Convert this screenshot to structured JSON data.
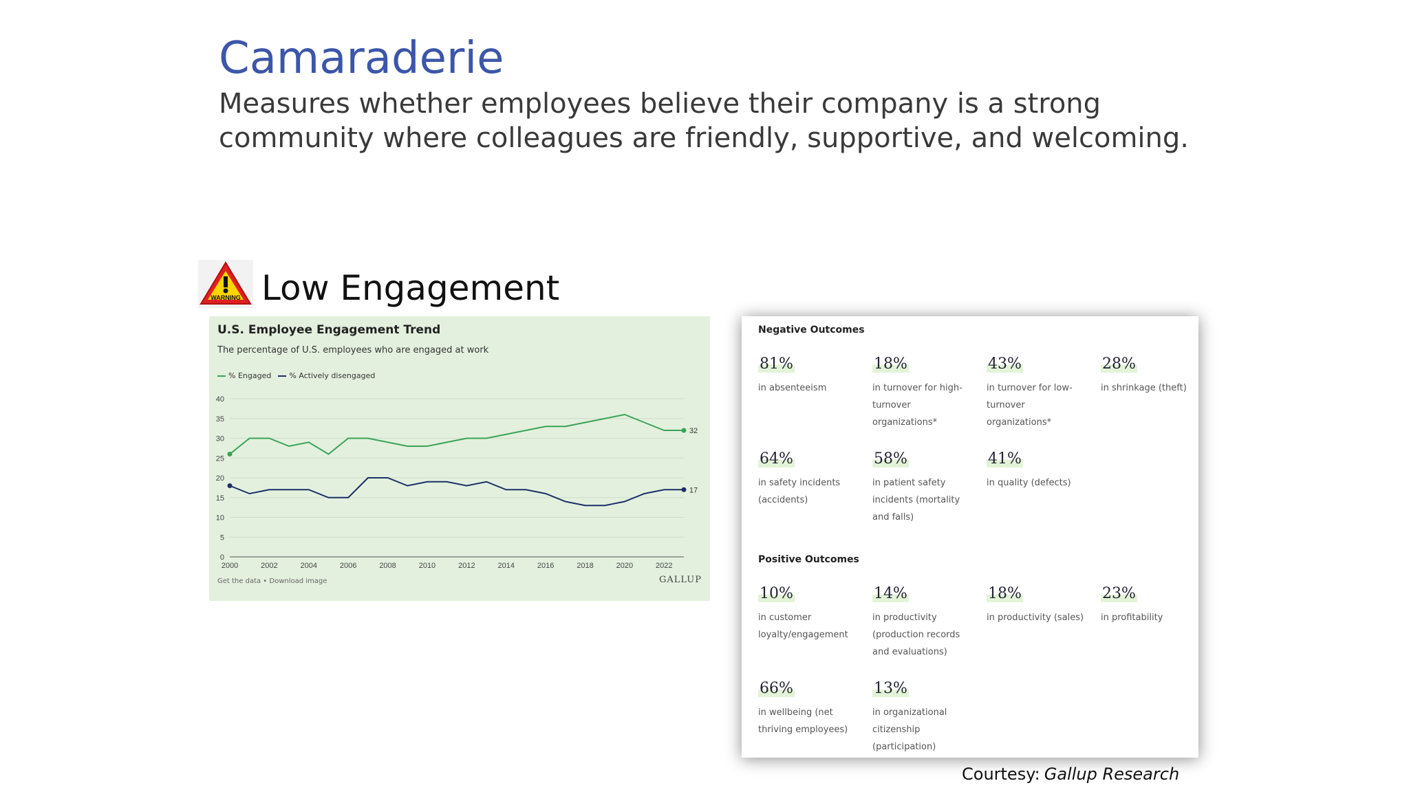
{
  "slide": {
    "title": "Camaraderie",
    "subtitle": "Measures whether employees believe their company is a strong community where colleagues are friendly, supportive, and welcoming.",
    "warning_label": "WARNING",
    "low_engagement": "Low Engagement",
    "courtesy_label": "Courtesy:",
    "courtesy_source": "Gallup Research"
  },
  "chart_data": {
    "type": "line",
    "title": "U.S. Employee Engagement Trend",
    "subtitle": "The percentage of U.S. employees who are engaged at work",
    "x": [
      2000,
      2001,
      2002,
      2003,
      2004,
      2005,
      2006,
      2007,
      2008,
      2009,
      2010,
      2011,
      2012,
      2013,
      2014,
      2015,
      2016,
      2017,
      2018,
      2019,
      2020,
      2021,
      2022,
      2023
    ],
    "series": [
      {
        "name": "% Engaged",
        "color": "#3aa357",
        "values": [
          26,
          30,
          30,
          28,
          29,
          26,
          30,
          30,
          29,
          28,
          28,
          29,
          30,
          30,
          31,
          32,
          33,
          33,
          34,
          35,
          36,
          34,
          32,
          32
        ],
        "end_label": "32"
      },
      {
        "name": "% Actively disengaged",
        "color": "#1b2f66",
        "values": [
          18,
          16,
          17,
          17,
          17,
          15,
          15,
          20,
          20,
          18,
          19,
          19,
          18,
          19,
          17,
          17,
          16,
          14,
          13,
          13,
          14,
          16,
          17,
          17
        ],
        "end_label": "17"
      }
    ],
    "ylim": [
      0,
      40
    ],
    "yticks": [
      0,
      5,
      10,
      15,
      20,
      25,
      30,
      35,
      40
    ],
    "xticks": [
      2000,
      2002,
      2004,
      2006,
      2008,
      2010,
      2012,
      2014,
      2016,
      2018,
      2020,
      2022
    ],
    "grid": true,
    "legend_position": "top-left",
    "footer": "Get the data • Download image",
    "brand": "GALLUP"
  },
  "outcomes": {
    "negative_title": "Negative Outcomes",
    "negative": [
      {
        "pct": "81%",
        "desc": "in absenteeism"
      },
      {
        "pct": "18%",
        "desc": "in turnover for high-turnover organizations*"
      },
      {
        "pct": "43%",
        "desc": "in turnover for low-turnover organizations*"
      },
      {
        "pct": "28%",
        "desc": "in shrinkage (theft)"
      },
      {
        "pct": "64%",
        "desc": "in safety incidents (accidents)"
      },
      {
        "pct": "58%",
        "desc": "in patient safety incidents (mortality and falls)"
      },
      {
        "pct": "41%",
        "desc": "in quality (defects)"
      }
    ],
    "positive_title": "Positive Outcomes",
    "positive": [
      {
        "pct": "10%",
        "desc": "in customer loyalty/engagement"
      },
      {
        "pct": "14%",
        "desc": "in productivity (production records and evaluations)"
      },
      {
        "pct": "18%",
        "desc": "in productivity (sales)"
      },
      {
        "pct": "23%",
        "desc": "in profitability"
      },
      {
        "pct": "66%",
        "desc": "in wellbeing (net thriving employees)"
      },
      {
        "pct": "13%",
        "desc": "in organizational citizenship (participation)"
      }
    ]
  }
}
